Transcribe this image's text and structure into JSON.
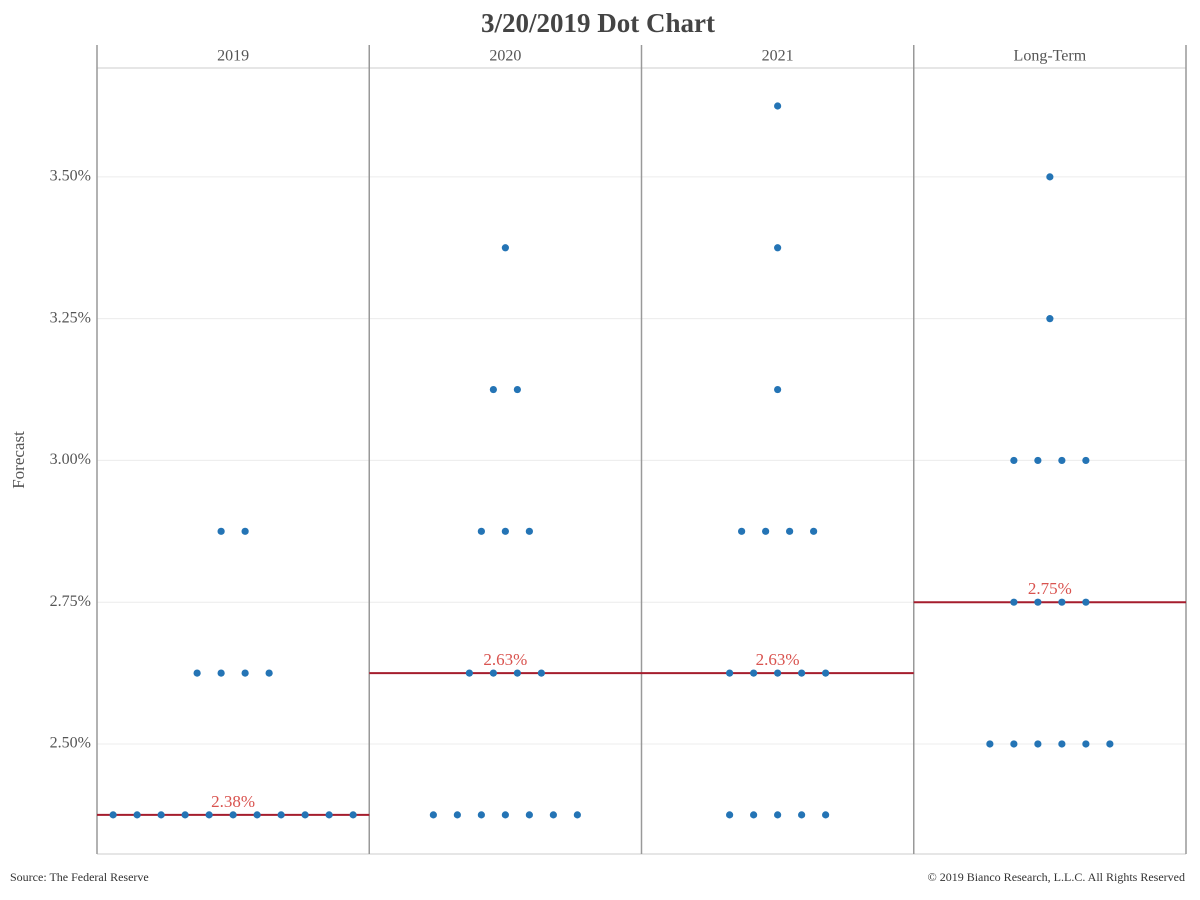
{
  "chart_data": {
    "type": "dot",
    "title": "3/20/2019 Dot Chart",
    "y_label": "Forecast",
    "source": "Source: The Federal Reserve",
    "copyright": "© 2019 Bianco Research, L.L.C. All Rights Reserved",
    "color": "#2474b5",
    "median_color": "#a51d2d",
    "median_label_color": "#d9534f",
    "grid": true,
    "ylim": [
      2.306,
      3.692
    ],
    "yticks": [
      {
        "value": 2.5,
        "label": "2.50%"
      },
      {
        "value": 2.75,
        "label": "2.75%"
      },
      {
        "value": 3.0,
        "label": "3.00%"
      },
      {
        "value": 3.25,
        "label": "3.25%"
      },
      {
        "value": 3.5,
        "label": "3.50%"
      }
    ],
    "panels": [
      {
        "name": "2019",
        "values": [
          2.375,
          2.375,
          2.375,
          2.375,
          2.375,
          2.375,
          2.375,
          2.375,
          2.375,
          2.375,
          2.375,
          2.625,
          2.625,
          2.625,
          2.625,
          2.875,
          2.875
        ],
        "median": 2.375,
        "median_label": "2.38%"
      },
      {
        "name": "2020",
        "values": [
          2.375,
          2.375,
          2.375,
          2.375,
          2.375,
          2.375,
          2.375,
          2.625,
          2.625,
          2.625,
          2.625,
          2.875,
          2.875,
          2.875,
          3.125,
          3.125,
          3.375
        ],
        "median": 2.625,
        "median_label": "2.63%"
      },
      {
        "name": "2021",
        "values": [
          2.375,
          2.375,
          2.375,
          2.375,
          2.375,
          2.625,
          2.625,
          2.625,
          2.625,
          2.625,
          2.875,
          2.875,
          2.875,
          2.875,
          3.125,
          3.375,
          3.625
        ],
        "median": 2.625,
        "median_label": "2.63%"
      },
      {
        "name": "Long-Term",
        "values": [
          2.5,
          2.5,
          2.5,
          2.5,
          2.5,
          2.5,
          2.75,
          2.75,
          2.75,
          2.75,
          3.0,
          3.0,
          3.0,
          3.0,
          3.25,
          3.5
        ],
        "median": 2.75,
        "median_label": "2.75%"
      }
    ]
  }
}
